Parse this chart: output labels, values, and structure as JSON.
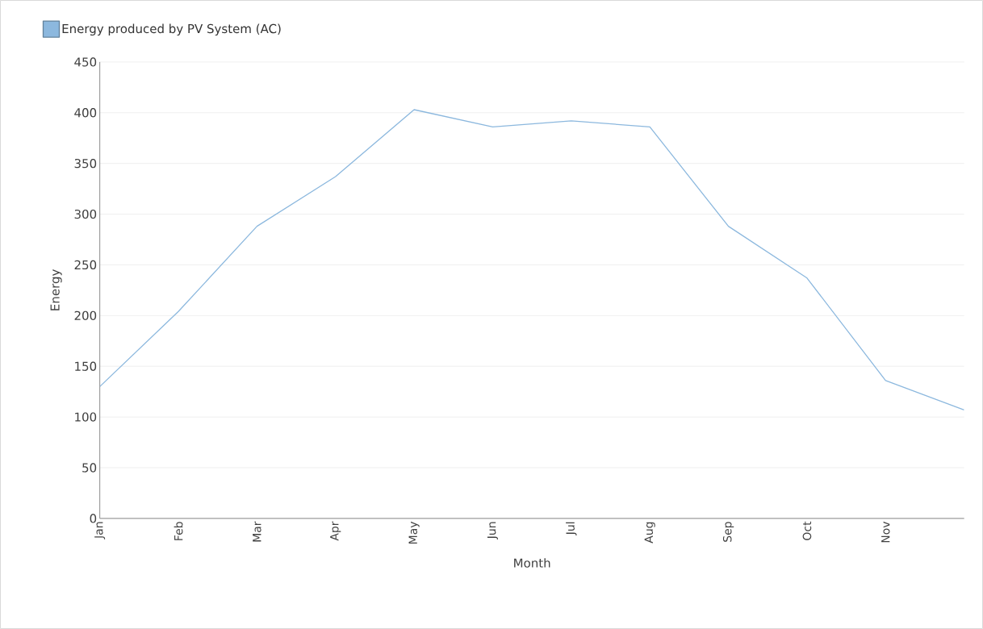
{
  "chart_data": {
    "type": "line",
    "xlabel": "Month",
    "ylabel": "Energy",
    "categories": [
      "Jan",
      "Feb",
      "Mar",
      "Apr",
      "May",
      "Jun",
      "Jul",
      "Aug",
      "Sep",
      "Oct",
      "Nov",
      null
    ],
    "series": [
      {
        "name": "Energy produced by PV System (AC)",
        "color": "#8cb8de",
        "values": [
          130,
          204,
          288,
          337,
          403,
          386,
          392,
          386,
          288,
          237,
          136,
          107
        ]
      }
    ],
    "ylim": [
      0,
      450
    ],
    "yticks": [
      0,
      50,
      100,
      150,
      200,
      250,
      300,
      350,
      400,
      450
    ],
    "grid": "y",
    "legend": "top left",
    "marker": "none",
    "line_style": "solid"
  }
}
